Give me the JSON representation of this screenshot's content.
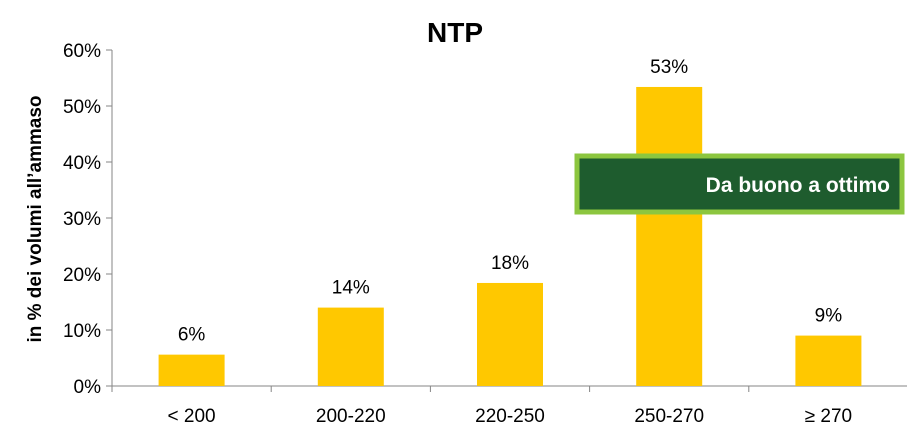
{
  "chart_data": {
    "type": "bar",
    "title": "NTP",
    "xlabel": "",
    "ylabel": "in % dei volumi all’ammaso",
    "categories": [
      "< 200",
      "200-220",
      "220-250",
      "250-270",
      "≥ 270"
    ],
    "values": [
      5.6,
      14.0,
      18.4,
      53.4,
      9.0
    ],
    "data_labels": [
      "6%",
      "14%",
      "18%",
      "53%",
      "9%"
    ],
    "ylim": [
      0,
      60
    ],
    "yticks": [
      0,
      10,
      20,
      30,
      40,
      50,
      60
    ],
    "ytick_labels": [
      "0%",
      "10%",
      "20%",
      "30%",
      "40%",
      "50%",
      "60%"
    ],
    "grid": false,
    "legend": "none",
    "bar_color": "#FFC800",
    "annotation": {
      "text": "Da buono a ottimo",
      "fill_color": "#1E5C2E",
      "border_color": "#8CC63F",
      "text_color": "#FFFFFF"
    }
  }
}
